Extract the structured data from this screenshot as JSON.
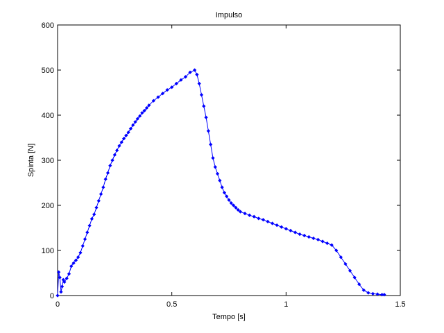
{
  "chart_data": {
    "type": "line",
    "title": "Impulso",
    "xlabel": "Tempo [s]",
    "ylabel": "Spinta [N]",
    "xlim": [
      0,
      1.5
    ],
    "ylim": [
      0,
      600
    ],
    "x_ticks": [
      "0",
      "0.5",
      "1",
      "1.5"
    ],
    "y_ticks": [
      "0",
      "100",
      "200",
      "300",
      "400",
      "500",
      "600"
    ],
    "grid": false,
    "marker": "point",
    "series": [
      {
        "color": "#0000ff",
        "x": [
          0.0,
          0.005,
          0.01,
          0.015,
          0.02,
          0.025,
          0.03,
          0.04,
          0.05,
          0.06,
          0.07,
          0.08,
          0.09,
          0.1,
          0.11,
          0.12,
          0.13,
          0.14,
          0.15,
          0.16,
          0.17,
          0.18,
          0.19,
          0.2,
          0.21,
          0.22,
          0.23,
          0.24,
          0.25,
          0.26,
          0.27,
          0.28,
          0.29,
          0.3,
          0.31,
          0.32,
          0.33,
          0.34,
          0.35,
          0.36,
          0.37,
          0.38,
          0.39,
          0.4,
          0.42,
          0.44,
          0.46,
          0.48,
          0.5,
          0.52,
          0.54,
          0.56,
          0.58,
          0.6,
          0.61,
          0.62,
          0.63,
          0.64,
          0.65,
          0.66,
          0.67,
          0.68,
          0.69,
          0.7,
          0.71,
          0.72,
          0.73,
          0.74,
          0.75,
          0.76,
          0.77,
          0.78,
          0.79,
          0.8,
          0.82,
          0.84,
          0.86,
          0.88,
          0.9,
          0.92,
          0.94,
          0.96,
          0.98,
          1.0,
          1.02,
          1.04,
          1.06,
          1.08,
          1.1,
          1.12,
          1.14,
          1.16,
          1.18,
          1.2,
          1.22,
          1.24,
          1.26,
          1.28,
          1.3,
          1.32,
          1.34,
          1.36,
          1.38,
          1.4,
          1.42,
          1.43
        ],
        "y": [
          0,
          52,
          40,
          8,
          20,
          35,
          30,
          38,
          48,
          65,
          72,
          78,
          85,
          95,
          110,
          125,
          140,
          155,
          170,
          180,
          195,
          210,
          225,
          240,
          258,
          272,
          288,
          300,
          312,
          322,
          332,
          340,
          348,
          355,
          362,
          370,
          378,
          385,
          392,
          398,
          405,
          410,
          416,
          422,
          432,
          440,
          448,
          456,
          462,
          470,
          478,
          485,
          495,
          500,
          490,
          470,
          445,
          420,
          395,
          365,
          335,
          305,
          285,
          270,
          255,
          240,
          228,
          220,
          212,
          205,
          200,
          195,
          190,
          186,
          182,
          178,
          175,
          171,
          168,
          164,
          160,
          156,
          152,
          148,
          144,
          140,
          136,
          133,
          130,
          127,
          124,
          120,
          116,
          112,
          100,
          85,
          70,
          55,
          40,
          25,
          12,
          6,
          4,
          3,
          2,
          2
        ]
      }
    ]
  }
}
